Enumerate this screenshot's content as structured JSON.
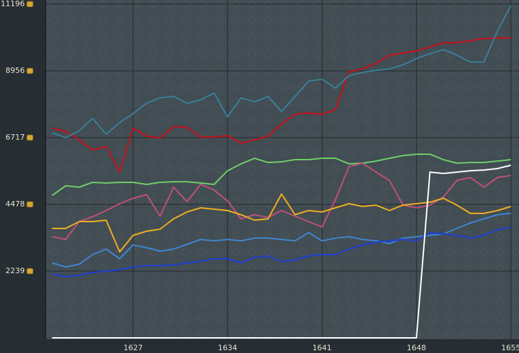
{
  "chart_data": {
    "type": "line",
    "x": [
      1621,
      1622,
      1623,
      1624,
      1625,
      1626,
      1627,
      1628,
      1629,
      1630,
      1631,
      1632,
      1633,
      1634,
      1635,
      1636,
      1637,
      1638,
      1639,
      1640,
      1641,
      1642,
      1643,
      1644,
      1645,
      1646,
      1647,
      1648,
      1649,
      1650,
      1651,
      1652,
      1653,
      1654,
      1655
    ],
    "xlim": [
      1620.5,
      1655.6
    ],
    "xticks": [
      1627,
      1634,
      1641,
      1648,
      1655
    ],
    "ylim": [
      0,
      11196
    ],
    "yticks": [
      2239,
      4478,
      6717,
      8956,
      11196
    ],
    "grid": true,
    "series": [
      {
        "color": "#c8101a",
        "values": [
          7039,
          6924,
          6647,
          6301,
          6416,
          5562,
          7039,
          6762,
          6716,
          7086,
          7062,
          6739,
          6739,
          6786,
          6532,
          6647,
          6762,
          7178,
          7501,
          7547,
          7501,
          7663,
          8932,
          9024,
          9209,
          9486,
          9555,
          9624,
          9763,
          9901,
          9901,
          9971,
          10040,
          10063,
          10063
        ]
      },
      {
        "color": "#3a7f98",
        "values": [
          6878,
          6716,
          6947,
          7363,
          6832,
          7224,
          7524,
          7870,
          8055,
          8101,
          7870,
          7986,
          8216,
          7409,
          8055,
          7916,
          8101,
          7593,
          8101,
          8609,
          8678,
          8378,
          8793,
          8909,
          8978,
          9024,
          9163,
          9370,
          9532,
          9670,
          9486,
          9255,
          9255,
          10294,
          11148
        ]
      },
      {
        "color": "#6fcf6a",
        "values": [
          4778,
          5101,
          5055,
          5216,
          5193,
          5216,
          5216,
          5147,
          5216,
          5239,
          5239,
          5193,
          5147,
          5608,
          5839,
          6024,
          5885,
          5908,
          5978,
          5978,
          6024,
          6024,
          5839,
          5862,
          5931,
          6024,
          6116,
          6162,
          6162,
          5978,
          5862,
          5885,
          5885,
          5931,
          5978
        ]
      },
      {
        "color": "#c0507a",
        "values": [
          3393,
          3300,
          3901,
          4062,
          4270,
          4501,
          4685,
          4801,
          4085,
          5055,
          4570,
          5147,
          4962,
          4593,
          3993,
          4131,
          4039,
          4270,
          4085,
          3901,
          3716,
          4639,
          5747,
          5862,
          5562,
          5285,
          4454,
          4362,
          4454,
          4731,
          5285,
          5378,
          5055,
          5378,
          5447
        ]
      },
      {
        "color": "#f0b020",
        "values": [
          3670,
          3670,
          3901,
          3901,
          3947,
          2885,
          3439,
          3577,
          3647,
          3993,
          4224,
          4362,
          4316,
          4270,
          4131,
          3947,
          3993,
          4824,
          4131,
          4270,
          4224,
          4362,
          4501,
          4408,
          4454,
          4270,
          4454,
          4501,
          4547,
          4685,
          4454,
          4177,
          4177,
          4270,
          4408
        ]
      },
      {
        "color": "#3f86d0",
        "values": [
          2516,
          2377,
          2470,
          2793,
          2977,
          2654,
          3116,
          3023,
          2908,
          2977,
          3139,
          3300,
          3254,
          3300,
          3254,
          3347,
          3347,
          3300,
          3254,
          3531,
          3254,
          3347,
          3393,
          3300,
          3254,
          3162,
          3347,
          3393,
          3439,
          3485,
          3670,
          3854,
          3993,
          4131,
          4177
        ]
      },
      {
        "color": "#1c3fd8",
        "values": [
          2146,
          2054,
          2100,
          2193,
          2239,
          2285,
          2377,
          2423,
          2423,
          2446,
          2516,
          2562,
          2654,
          2654,
          2516,
          2700,
          2746,
          2562,
          2608,
          2746,
          2793,
          2793,
          2977,
          3116,
          3208,
          3254,
          3300,
          3254,
          3531,
          3485,
          3439,
          3347,
          3439,
          3624,
          3716
        ]
      },
      {
        "color": "#ffffff",
        "values": [
          0,
          0,
          0,
          0,
          0,
          0,
          0,
          0,
          0,
          0,
          0,
          0,
          0,
          0,
          0,
          0,
          0,
          0,
          0,
          0,
          0,
          0,
          0,
          0,
          0,
          0,
          0,
          0,
          5562,
          5516,
          5562,
          5608,
          5631,
          5678,
          5793
        ]
      }
    ]
  }
}
